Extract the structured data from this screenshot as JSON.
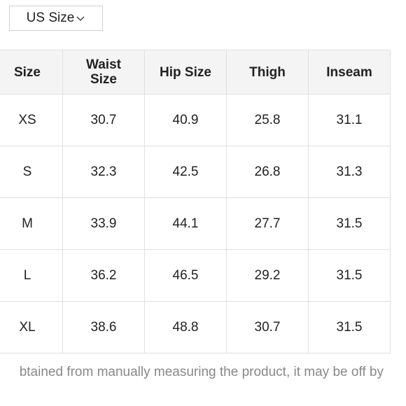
{
  "unit_selector": {
    "value": "US Size",
    "icon": "chevron-down-icon"
  },
  "table": {
    "headers": [
      "Size",
      "Waist Size",
      "Hip Size",
      "Thigh",
      "Inseam"
    ],
    "rows": [
      [
        "XS",
        "30.7",
        "40.9",
        "25.8",
        "31.1"
      ],
      [
        "S",
        "32.3",
        "42.5",
        "26.8",
        "31.3"
      ],
      [
        "M",
        "33.9",
        "44.1",
        "27.7",
        "31.5"
      ],
      [
        "L",
        "36.2",
        "46.5",
        "29.2",
        "31.5"
      ],
      [
        "XL",
        "38.6",
        "48.8",
        "30.7",
        "31.5"
      ]
    ]
  },
  "footnote": "btained from manually measuring the product, it may be off by"
}
